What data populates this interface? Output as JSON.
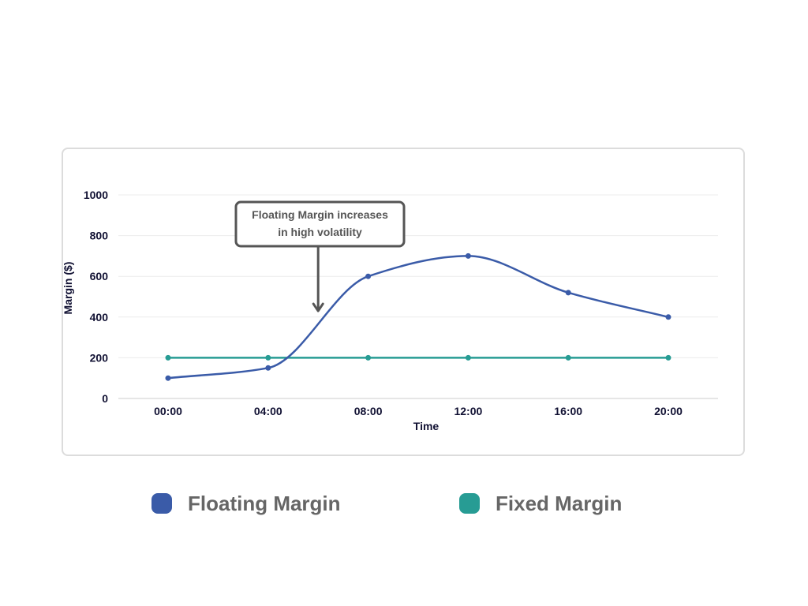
{
  "chart_data": {
    "type": "line",
    "title": "",
    "xlabel": "Time",
    "ylabel": "Margin ($)",
    "categories": [
      "00:00",
      "04:00",
      "08:00",
      "12:00",
      "16:00",
      "20:00"
    ],
    "y_ticks": [
      "0",
      "200",
      "400",
      "600",
      "800",
      "1000"
    ],
    "ylim": [
      0,
      1000
    ],
    "grid": true,
    "legend_position": "bottom",
    "series": [
      {
        "name": "Floating Margin",
        "values": [
          100,
          150,
          600,
          700,
          520,
          400
        ],
        "color": "#3a5ba8",
        "smooth": true
      },
      {
        "name": "Fixed Margin",
        "values": [
          200,
          200,
          200,
          200,
          200,
          200
        ],
        "color": "#279c94",
        "smooth": false
      }
    ],
    "annotation": {
      "line1": "Floating Margin increases",
      "line2": "in high volatility",
      "points_to_x": "06:00",
      "points_to_y": 430
    }
  }
}
